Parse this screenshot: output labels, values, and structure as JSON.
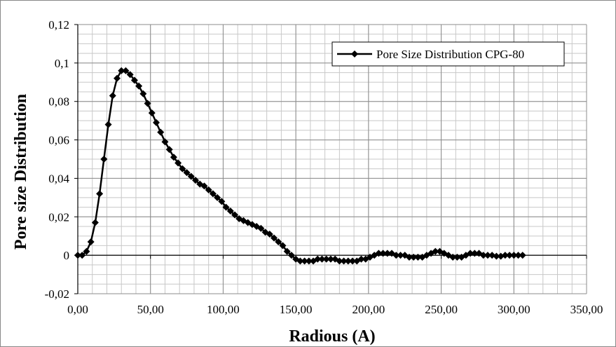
{
  "chart_data": {
    "type": "line",
    "title": "",
    "xlabel": "Radious (A)",
    "ylabel": "Pore size Distribution",
    "xlim": [
      0,
      350
    ],
    "ylim": [
      -0.02,
      0.12
    ],
    "x_major_step": 50,
    "y_major_step": 0.02,
    "x_minor_step": 10,
    "y_minor_step": 0.005,
    "x_tick_labels": [
      "0,00",
      "50,00",
      "100,00",
      "150,00",
      "200,00",
      "250,00",
      "300,00",
      "350,00"
    ],
    "y_tick_labels": [
      "-0,02",
      "0",
      "0,02",
      "0,04",
      "0,06",
      "0,08",
      "0,1",
      "0,12"
    ],
    "grid": true,
    "legend_position": "top-right",
    "series": [
      {
        "name": "Pore Size Distribution CPG-80",
        "color": "#000000",
        "marker": "diamond",
        "x": [
          0,
          3,
          6,
          9,
          12,
          15,
          18,
          21,
          24,
          27,
          30,
          33,
          36,
          39,
          42,
          45,
          48,
          51,
          54,
          57,
          60,
          63,
          66,
          69,
          72,
          75,
          78,
          81,
          84,
          87,
          90,
          93,
          96,
          99,
          102,
          105,
          108,
          111,
          114,
          117,
          120,
          123,
          126,
          129,
          132,
          135,
          138,
          141,
          144,
          147,
          150,
          153,
          156,
          159,
          162,
          165,
          168,
          171,
          174,
          177,
          180,
          183,
          186,
          189,
          192,
          195,
          198,
          201,
          204,
          207,
          210,
          213,
          216,
          219,
          222,
          225,
          228,
          231,
          234,
          237,
          240,
          243,
          246,
          249,
          252,
          255,
          258,
          261,
          264,
          267,
          270,
          273,
          276,
          279,
          282,
          285,
          288,
          291,
          294,
          297,
          300,
          303,
          306
        ],
        "y": [
          0,
          0,
          0.002,
          0.007,
          0.017,
          0.032,
          0.05,
          0.068,
          0.083,
          0.092,
          0.096,
          0.096,
          0.094,
          0.091,
          0.088,
          0.084,
          0.079,
          0.074,
          0.069,
          0.064,
          0.059,
          0.055,
          0.051,
          0.048,
          0.045,
          0.043,
          0.041,
          0.039,
          0.037,
          0.036,
          0.034,
          0.032,
          0.03,
          0.028,
          0.025,
          0.023,
          0.021,
          0.019,
          0.018,
          0.017,
          0.016,
          0.015,
          0.014,
          0.012,
          0.011,
          0.009,
          0.007,
          0.005,
          0.002,
          0,
          -0.002,
          -0.003,
          -0.003,
          -0.003,
          -0.003,
          -0.002,
          -0.002,
          -0.002,
          -0.002,
          -0.002,
          -0.003,
          -0.003,
          -0.003,
          -0.003,
          -0.003,
          -0.002,
          -0.002,
          -0.001,
          0,
          0.001,
          0.001,
          0.001,
          0.001,
          0,
          0,
          0,
          -0.001,
          -0.001,
          -0.001,
          -0.001,
          0,
          0.001,
          0.002,
          0.002,
          0.001,
          0,
          -0.001,
          -0.001,
          -0.001,
          0,
          0.001,
          0.001,
          0.001,
          0,
          0,
          0,
          -0.0005,
          -0.0005,
          0,
          0,
          0,
          0,
          0
        ]
      }
    ]
  }
}
